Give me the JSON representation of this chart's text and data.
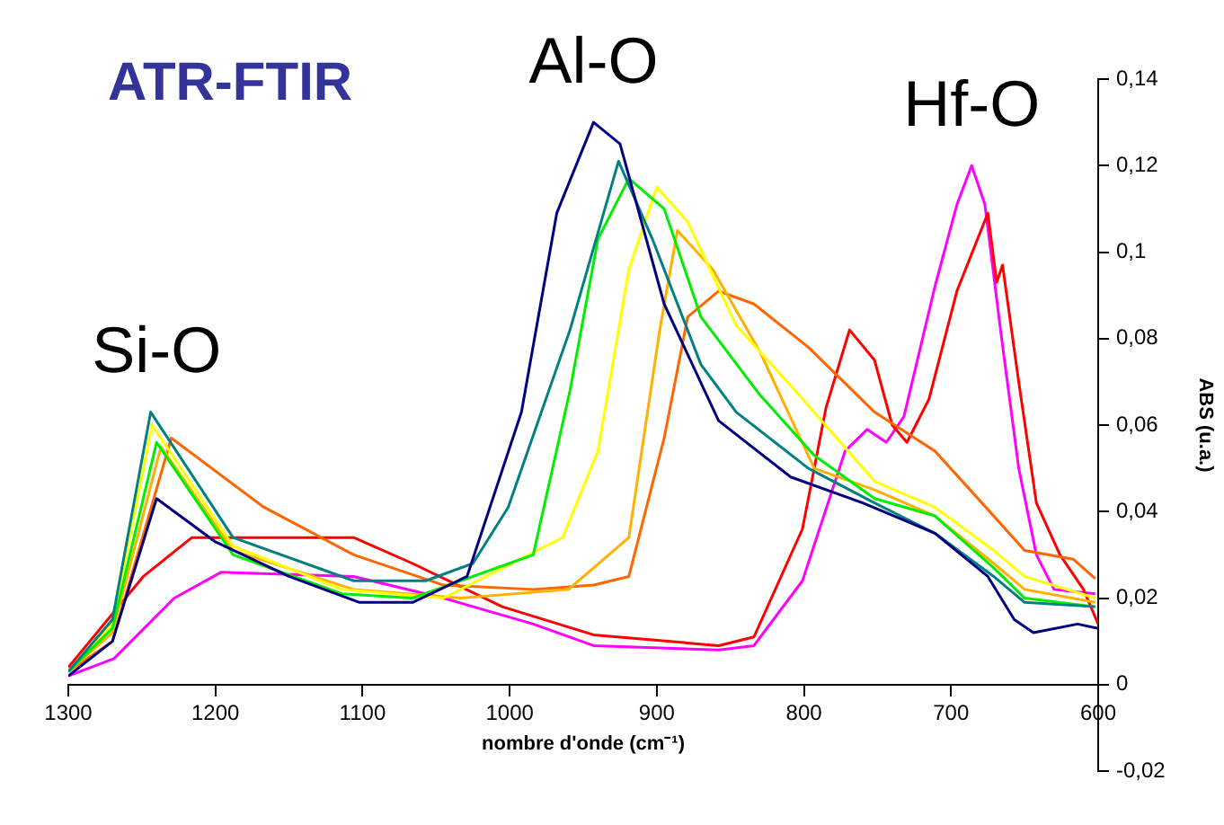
{
  "chart_data": {
    "type": "line",
    "title": "ATR-FTIR",
    "xlabel": "nombre d'onde (cm⁻¹)",
    "ylabel": "ABS (u.a.)",
    "xlim": [
      1300,
      600
    ],
    "xticks": [
      1300,
      1200,
      1100,
      1000,
      900,
      800,
      700,
      600
    ],
    "ylim": [
      -0.02,
      0.14
    ],
    "yticks": [
      {
        "value": -0.02,
        "label": "-0,02"
      },
      0,
      {
        "value": 0.02,
        "label": "0,02"
      },
      {
        "value": 0.04,
        "label": "0,04"
      },
      {
        "value": 0.06,
        "label": "0,06"
      },
      {
        "value": 0.08,
        "label": "0,08"
      },
      {
        "value": 0.1,
        "label": "0,1"
      },
      {
        "value": 0.12,
        "label": "0,12"
      },
      {
        "value": 0.14,
        "label": "0,14"
      }
    ],
    "grid": false,
    "legend": false,
    "annotations": [
      {
        "text": "Si-O",
        "x": 1240,
        "y": 0.063
      },
      {
        "text": "Al-O",
        "x": 943,
        "y": 0.13
      },
      {
        "text": "Hf-O",
        "x": 686,
        "y": 0.12
      }
    ],
    "series": [
      {
        "color": "#000080",
        "x": [
          1300,
          1270,
          1240,
          1200,
          1150,
          1102,
          1066,
          1029,
          992,
          968,
          943,
          925,
          895,
          858,
          809,
          760,
          711,
          675,
          657,
          644,
          614,
          600
        ],
        "values": [
          0.002,
          0.01,
          0.043,
          0.033,
          0.025,
          0.019,
          0.019,
          0.025,
          0.063,
          0.109,
          0.13,
          0.125,
          0.088,
          0.061,
          0.048,
          0.042,
          0.035,
          0.025,
          0.015,
          0.012,
          0.014,
          0.013
        ]
      },
      {
        "color": "#008080",
        "x": [
          1300,
          1270,
          1244,
          1188,
          1106,
          1057,
          1025,
          1001,
          959,
          926,
          903,
          870,
          846,
          797,
          752,
          711,
          671,
          650,
          602
        ],
        "values": [
          0.003,
          0.015,
          0.063,
          0.034,
          0.024,
          0.024,
          0.028,
          0.041,
          0.082,
          0.121,
          0.103,
          0.074,
          0.063,
          0.05,
          0.042,
          0.035,
          0.025,
          0.019,
          0.018
        ]
      },
      {
        "color": "#00ee00",
        "x": [
          1300,
          1270,
          1240,
          1188,
          1114,
          1066,
          984,
          959,
          940,
          919,
          895,
          870,
          830,
          793,
          752,
          711,
          671,
          650,
          602
        ],
        "values": [
          0.003,
          0.013,
          0.056,
          0.03,
          0.021,
          0.02,
          0.03,
          0.068,
          0.103,
          0.117,
          0.11,
          0.085,
          0.067,
          0.053,
          0.043,
          0.039,
          0.027,
          0.02,
          0.018
        ]
      },
      {
        "color": "#ffff00",
        "x": [
          1300,
          1270,
          1243,
          1188,
          1114,
          1045,
          964,
          940,
          919,
          900,
          879,
          846,
          806,
          752,
          711,
          671,
          650,
          602
        ],
        "values": [
          0.003,
          0.014,
          0.06,
          0.032,
          0.022,
          0.02,
          0.034,
          0.054,
          0.096,
          0.115,
          0.107,
          0.083,
          0.068,
          0.047,
          0.041,
          0.031,
          0.025,
          0.02
        ]
      },
      {
        "color": "#ffb000",
        "x": [
          1300,
          1270,
          1237,
          1188,
          1106,
          1033,
          960,
          919,
          898,
          886,
          862,
          830,
          793,
          752,
          711,
          671,
          650,
          602
        ],
        "values": [
          0.003,
          0.012,
          0.055,
          0.031,
          0.022,
          0.02,
          0.022,
          0.034,
          0.082,
          0.105,
          0.096,
          0.077,
          0.05,
          0.045,
          0.039,
          0.028,
          0.022,
          0.019
        ]
      },
      {
        "color": "#ff6600",
        "x": [
          1300,
          1270,
          1230,
          1167,
          1106,
          1045,
          984,
          943,
          919,
          895,
          879,
          858,
          834,
          797,
          752,
          711,
          679,
          650,
          617,
          602
        ],
        "values": [
          0.003,
          0.01,
          0.057,
          0.041,
          0.03,
          0.023,
          0.022,
          0.023,
          0.025,
          0.057,
          0.085,
          0.091,
          0.088,
          0.078,
          0.063,
          0.054,
          0.042,
          0.031,
          0.029,
          0.0245
        ]
      },
      {
        "color": "#ff0000",
        "x": [
          1300,
          1249,
          1216,
          1106,
          1066,
          1005,
          943,
          858,
          834,
          801,
          785,
          769,
          752,
          740,
          730,
          715,
          696,
          675,
          669,
          665,
          654,
          642,
          626,
          610,
          600
        ],
        "values": [
          0.004,
          0.025,
          0.034,
          0.034,
          0.028,
          0.018,
          0.0115,
          0.009,
          0.011,
          0.036,
          0.064,
          0.082,
          0.075,
          0.06,
          0.056,
          0.066,
          0.091,
          0.109,
          0.093,
          0.097,
          0.07,
          0.042,
          0.03,
          0.022,
          0.014
        ]
      },
      {
        "color": "#ff00ff",
        "x": [
          1300,
          1269,
          1228,
          1196,
          1106,
          1045,
          984,
          943,
          858,
          834,
          801,
          772,
          757,
          744,
          732,
          711,
          696,
          686,
          677,
          666,
          654,
          642,
          630,
          602
        ],
        "values": [
          0.002,
          0.006,
          0.02,
          0.026,
          0.025,
          0.02,
          0.014,
          0.009,
          0.008,
          0.009,
          0.024,
          0.054,
          0.059,
          0.056,
          0.062,
          0.092,
          0.111,
          0.12,
          0.111,
          0.081,
          0.05,
          0.03,
          0.022,
          0.021
        ]
      }
    ]
  }
}
